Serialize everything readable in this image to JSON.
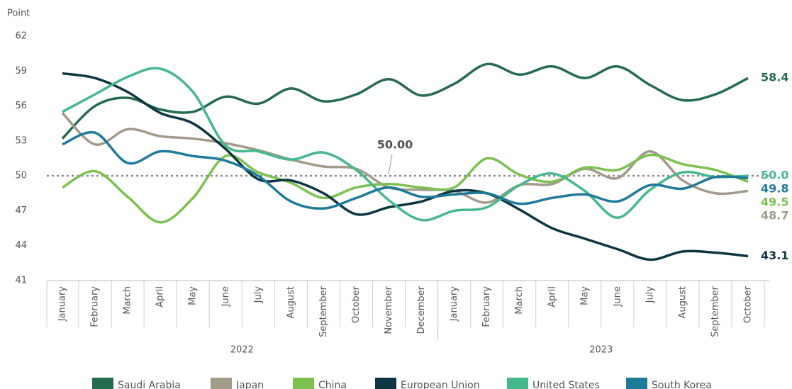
{
  "chart_data": {
    "type": "line",
    "y_axis_label": "Point",
    "groups": [
      {
        "name": "2022",
        "categories": [
          "January",
          "February",
          "March",
          "April",
          "May",
          "June",
          "July",
          "August",
          "September",
          "October",
          "November",
          "December"
        ]
      },
      {
        "name": "2023",
        "categories": [
          "January",
          "February",
          "March",
          "April",
          "May",
          "June",
          "July",
          "August",
          "September",
          "October"
        ]
      }
    ],
    "ylim": [
      41,
      62
    ],
    "yticks": [
      41,
      44,
      47,
      50,
      53,
      56,
      59,
      62
    ],
    "grid": false,
    "reference": {
      "value": 50,
      "label": "50.00",
      "color": "#888888"
    },
    "legend": "bottom",
    "series": [
      {
        "name": "Saudi Arabia",
        "color": "#256b4f",
        "values": [
          53.2,
          56.0,
          56.7,
          55.7,
          55.5,
          56.8,
          56.2,
          57.5,
          56.4,
          57.0,
          58.3,
          56.9,
          57.9,
          59.6,
          58.7,
          59.4,
          58.4,
          59.4,
          57.8,
          56.5,
          57.0,
          58.4
        ],
        "value_labels": [
          null,
          null,
          null,
          null,
          null,
          null,
          null,
          null,
          null,
          null,
          null,
          null,
          null,
          null,
          null,
          null,
          null,
          null,
          null,
          null,
          null,
          "58.4"
        ]
      },
      {
        "name": "Japan",
        "color": "#a39b89",
        "values": [
          55.4,
          52.7,
          54.0,
          53.4,
          53.2,
          52.8,
          52.2,
          51.4,
          50.8,
          50.6,
          49.0,
          48.8,
          48.7,
          47.7,
          49.2,
          49.3,
          50.6,
          49.8,
          52.1,
          49.6,
          48.5,
          48.7
        ],
        "value_labels": [
          null,
          null,
          null,
          null,
          null,
          null,
          null,
          null,
          null,
          null,
          null,
          null,
          null,
          null,
          null,
          null,
          null,
          null,
          null,
          null,
          null,
          "48.7"
        ]
      },
      {
        "name": "China",
        "color": "#7cc150",
        "values": [
          49.0,
          50.4,
          48.2,
          46.0,
          48.1,
          51.7,
          50.3,
          49.4,
          48.1,
          49.0,
          49.3,
          49.0,
          49.0,
          51.5,
          50.1,
          49.5,
          50.7,
          50.5,
          51.8,
          51.0,
          50.5,
          49.5
        ],
        "value_labels": [
          null,
          null,
          null,
          null,
          null,
          null,
          null,
          null,
          null,
          null,
          null,
          null,
          null,
          null,
          null,
          null,
          null,
          null,
          null,
          null,
          null,
          "49.5"
        ]
      },
      {
        "name": "European Union",
        "color": "#0d3542",
        "values": [
          58.8,
          58.4,
          57.2,
          55.4,
          54.5,
          52.3,
          49.7,
          49.6,
          48.5,
          46.7,
          47.3,
          47.8,
          48.7,
          48.5,
          47.1,
          45.5,
          44.6,
          43.7,
          42.8,
          43.5,
          43.4,
          43.1
        ],
        "value_labels": [
          null,
          null,
          null,
          null,
          null,
          null,
          null,
          null,
          null,
          null,
          null,
          null,
          null,
          null,
          null,
          null,
          null,
          null,
          null,
          null,
          null,
          "43.1"
        ]
      },
      {
        "name": "United States",
        "color": "#45b88c",
        "values": [
          55.5,
          57.0,
          58.5,
          59.2,
          57.2,
          52.6,
          52.1,
          51.4,
          52.0,
          50.5,
          47.9,
          46.2,
          47.0,
          47.3,
          49.2,
          50.2,
          48.7,
          46.4,
          48.8,
          50.3,
          49.9,
          50.0
        ],
        "value_labels": [
          null,
          null,
          null,
          null,
          null,
          null,
          null,
          null,
          null,
          null,
          null,
          null,
          null,
          null,
          null,
          null,
          null,
          null,
          null,
          null,
          null,
          "50.0"
        ]
      },
      {
        "name": "South Korea",
        "color": "#1f7a9a",
        "values": [
          52.7,
          53.7,
          51.1,
          52.1,
          51.7,
          51.3,
          50.0,
          47.8,
          47.2,
          48.1,
          49.0,
          48.2,
          48.4,
          48.5,
          47.6,
          48.1,
          48.4,
          47.8,
          49.2,
          48.9,
          49.9,
          49.8
        ],
        "value_labels": [
          null,
          null,
          null,
          null,
          null,
          null,
          null,
          null,
          null,
          null,
          null,
          null,
          null,
          null,
          null,
          null,
          null,
          null,
          null,
          null,
          null,
          "49.8"
        ]
      }
    ]
  }
}
